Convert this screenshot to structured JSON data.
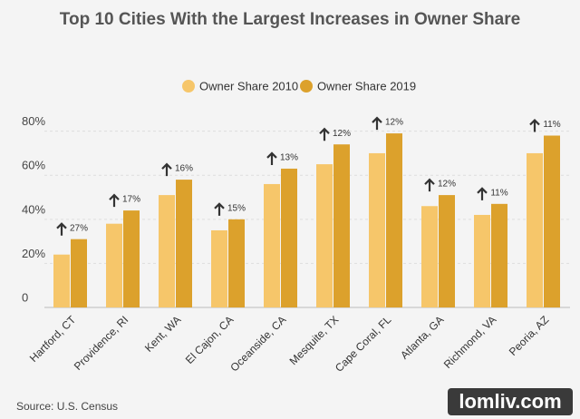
{
  "chart_data": {
    "type": "bar",
    "title": "Top 10 Cities With the Largest Increases in Owner Share",
    "categories": [
      "Hartford, CT",
      "Providence, RI",
      "Kent, WA",
      "El Cajon, CA",
      "Oceanside, CA",
      "Mesquite, TX",
      "Cape Coral, FL",
      "Atlanta, GA",
      "Richmond, VA",
      "Peoria, AZ"
    ],
    "series": [
      {
        "name": "Owner Share 2010",
        "color": "#f6c66a",
        "values": [
          24,
          38,
          51,
          35,
          56,
          65,
          70,
          46,
          42,
          70
        ]
      },
      {
        "name": "Owner Share 2019",
        "color": "#dca12c",
        "values": [
          31,
          44,
          58,
          40,
          63,
          74,
          79,
          51,
          47,
          78
        ]
      }
    ],
    "annotations": [
      "27%",
      "17%",
      "16%",
      "15%",
      "13%",
      "12%",
      "12%",
      "12%",
      "11%",
      "11%"
    ],
    "ylim": [
      0,
      85
    ],
    "yticks": [
      0,
      {
        "value": 20,
        "label": "20%"
      },
      {
        "value": 40,
        "label": "40%"
      },
      {
        "value": 60,
        "label": "60%"
      },
      {
        "value": 80,
        "label": "80%"
      }
    ],
    "grid": true,
    "legend": "top",
    "source": "Source: U.S. Census"
  },
  "watermark": "lomliv.com"
}
